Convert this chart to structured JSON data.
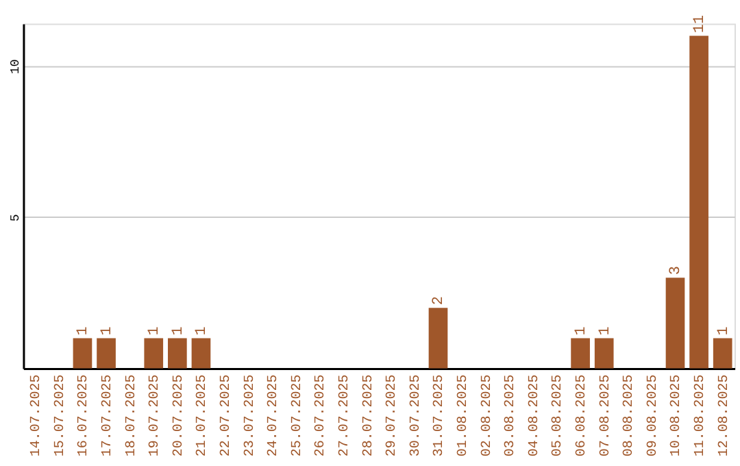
{
  "chart_data": {
    "type": "bar",
    "categories": [
      "14.07.2025",
      "15.07.2025",
      "16.07.2025",
      "17.07.2025",
      "18.07.2025",
      "19.07.2025",
      "20.07.2025",
      "21.07.2025",
      "22.07.2025",
      "23.07.2025",
      "24.07.2025",
      "25.07.2025",
      "26.07.2025",
      "27.07.2025",
      "28.07.2025",
      "29.07.2025",
      "30.07.2025",
      "31.07.2025",
      "01.08.2025",
      "02.08.2025",
      "03.08.2025",
      "04.08.2025",
      "05.08.2025",
      "06.08.2025",
      "07.08.2025",
      "08.08.2025",
      "09.08.2025",
      "10.08.2025",
      "11.08.2025",
      "12.08.2025"
    ],
    "values": [
      null,
      null,
      1,
      1,
      null,
      1,
      1,
      1,
      null,
      null,
      null,
      null,
      null,
      null,
      null,
      null,
      null,
      2,
      null,
      null,
      null,
      null,
      null,
      1,
      1,
      null,
      null,
      3,
      11,
      1
    ],
    "color": "#a0572a",
    "ylim": [
      0,
      11.4
    ],
    "yticks": [
      5,
      10
    ],
    "grid": "y",
    "data_labels": true
  }
}
